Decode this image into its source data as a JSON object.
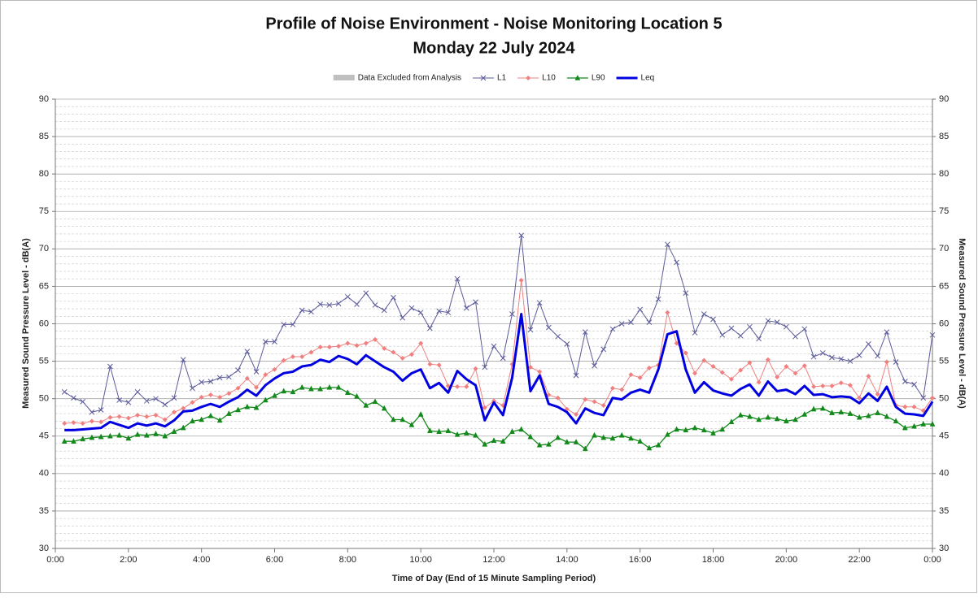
{
  "chart_data": {
    "type": "line",
    "title": "Profile of Noise Environment - Noise Monitoring Location 5",
    "subtitle": "Monday 22 July 2024",
    "x_label": "Time of Day (End of 15 Minute Sampling Period)",
    "y_label": "Measured Sound Pressure Level - dB(A)",
    "y2_label": "Measured Sound Pressure Level - dB(A)",
    "excluded_legend": {
      "name": "Data Excluded from Analysis",
      "color": "#bfbfbf"
    },
    "xlim": [
      0,
      24
    ],
    "xticks": [
      {
        "value": 0,
        "label": "0:00"
      },
      {
        "value": 2,
        "label": "2:00"
      },
      {
        "value": 4,
        "label": "4:00"
      },
      {
        "value": 6,
        "label": "6:00"
      },
      {
        "value": 8,
        "label": "8:00"
      },
      {
        "value": 10,
        "label": "10:00"
      },
      {
        "value": 12,
        "label": "12:00"
      },
      {
        "value": 14,
        "label": "14:00"
      },
      {
        "value": 16,
        "label": "16:00"
      },
      {
        "value": 18,
        "label": "18:00"
      },
      {
        "value": 20,
        "label": "20:00"
      },
      {
        "value": 22,
        "label": "22:00"
      },
      {
        "value": 24,
        "label": "0:00"
      }
    ],
    "ylim": [
      30,
      90
    ],
    "yticks": [
      30,
      35,
      40,
      45,
      50,
      55,
      60,
      65,
      70,
      75,
      80,
      85,
      90
    ],
    "y2lim": [
      30,
      90
    ],
    "y2ticks": [
      30,
      35,
      40,
      45,
      50,
      55,
      60,
      65,
      70,
      75,
      80,
      85,
      90
    ],
    "grid": true,
    "minor_grid": true,
    "legend": "top",
    "x": [
      0.25,
      0.5,
      0.75,
      1,
      1.25,
      1.5,
      1.75,
      2,
      2.25,
      2.5,
      2.75,
      3,
      3.25,
      3.5,
      3.75,
      4,
      4.25,
      4.5,
      4.75,
      5,
      5.25,
      5.5,
      5.75,
      6,
      6.25,
      6.5,
      6.75,
      7,
      7.25,
      7.5,
      7.75,
      8,
      8.25,
      8.5,
      8.75,
      9,
      9.25,
      9.5,
      9.75,
      10,
      10.25,
      10.5,
      10.75,
      11,
      11.25,
      11.5,
      11.75,
      12,
      12.25,
      12.5,
      12.75,
      13,
      13.25,
      13.5,
      13.75,
      14,
      14.25,
      14.5,
      14.75,
      15,
      15.25,
      15.5,
      15.75,
      16,
      16.25,
      16.5,
      16.75,
      17,
      17.25,
      17.5,
      17.75,
      18,
      18.25,
      18.5,
      18.75,
      19,
      19.25,
      19.5,
      19.75,
      20,
      20.25,
      20.5,
      20.75,
      21,
      21.25,
      21.5,
      21.75,
      22,
      22.25,
      22.5,
      22.75,
      23,
      23.25,
      23.5,
      23.75,
      24
    ],
    "series": [
      {
        "name": "L1",
        "color": "#5b5b9a",
        "marker": "x",
        "width": 1,
        "values": [
          50.9,
          50.1,
          49.6,
          48.2,
          48.5,
          54.3,
          49.8,
          49.5,
          50.9,
          49.7,
          50.0,
          49.2,
          50.1,
          55.2,
          51.4,
          52.2,
          52.3,
          52.8,
          52.9,
          53.8,
          56.3,
          53.6,
          57.6,
          57.6,
          59.9,
          59.9,
          61.8,
          61.6,
          62.6,
          62.5,
          62.7,
          63.6,
          62.6,
          64.1,
          62.5,
          61.8,
          63.5,
          60.8,
          62.1,
          61.5,
          59.4,
          61.7,
          61.5,
          66.0,
          62.1,
          62.9,
          54.2,
          57.0,
          55.4,
          61.3,
          71.8,
          59.2,
          62.8,
          59.5,
          58.3,
          57.3,
          53.1,
          58.9,
          54.4,
          56.6,
          59.3,
          60.0,
          60.2,
          61.9,
          60.2,
          63.3,
          70.6,
          68.2,
          64.1,
          58.8,
          61.3,
          60.6,
          58.5,
          59.4,
          58.4,
          59.6,
          58.0,
          60.4,
          60.2,
          59.6,
          58.3,
          59.3,
          55.6,
          56.1,
          55.5,
          55.3,
          55.0,
          55.8,
          57.3,
          55.7,
          58.9,
          54.9,
          52.3,
          51.9,
          50.1,
          58.5
        ]
      },
      {
        "name": "L10",
        "color": "#f08080",
        "marker": "diamond",
        "width": 1,
        "values": [
          46.7,
          46.8,
          46.7,
          47.0,
          46.9,
          47.5,
          47.6,
          47.4,
          47.8,
          47.6,
          47.8,
          47.2,
          48.2,
          48.7,
          49.5,
          50.2,
          50.5,
          50.2,
          50.7,
          51.4,
          52.7,
          51.5,
          53.2,
          53.9,
          55.1,
          55.6,
          55.6,
          56.2,
          56.9,
          56.9,
          57.0,
          57.4,
          57.1,
          57.4,
          57.9,
          56.7,
          56.2,
          55.4,
          55.9,
          57.4,
          54.6,
          54.5,
          51.7,
          51.6,
          51.6,
          54.0,
          48.8,
          49.7,
          49.1,
          54.6,
          65.8,
          54.2,
          53.6,
          50.5,
          50.1,
          48.6,
          47.9,
          49.9,
          49.6,
          49.1,
          51.4,
          51.2,
          53.2,
          52.8,
          54.1,
          54.5,
          61.5,
          57.4,
          56.1,
          53.4,
          55.1,
          54.3,
          53.5,
          52.6,
          53.8,
          54.8,
          52.2,
          55.2,
          52.9,
          54.3,
          53.4,
          54.4,
          51.6,
          51.7,
          51.7,
          52.1,
          51.8,
          50.1,
          53.0,
          50.6,
          54.9,
          49.1,
          48.9,
          48.9,
          48.4,
          50.1
        ]
      },
      {
        "name": "L90",
        "color": "#12891a",
        "marker": "triangle",
        "width": 1.3,
        "values": [
          44.3,
          44.3,
          44.6,
          44.8,
          44.9,
          45.0,
          45.1,
          44.7,
          45.2,
          45.1,
          45.3,
          45.0,
          45.6,
          46.1,
          47.0,
          47.2,
          47.7,
          47.1,
          48.0,
          48.5,
          48.9,
          48.8,
          49.8,
          50.4,
          51.0,
          50.9,
          51.5,
          51.3,
          51.3,
          51.5,
          51.5,
          50.8,
          50.3,
          49.1,
          49.6,
          48.7,
          47.2,
          47.2,
          46.5,
          47.9,
          45.7,
          45.6,
          45.7,
          45.2,
          45.4,
          45.1,
          43.9,
          44.4,
          44.3,
          45.6,
          45.9,
          44.9,
          43.8,
          43.9,
          44.8,
          44.2,
          44.2,
          43.3,
          45.1,
          44.8,
          44.7,
          45.1,
          44.7,
          44.3,
          43.4,
          43.8,
          45.2,
          45.9,
          45.8,
          46.1,
          45.8,
          45.4,
          45.9,
          46.9,
          47.8,
          47.6,
          47.2,
          47.5,
          47.3,
          47.0,
          47.2,
          47.9,
          48.6,
          48.7,
          48.1,
          48.2,
          48.0,
          47.5,
          47.7,
          48.1,
          47.6,
          47.0,
          46.1,
          46.3,
          46.6,
          46.6
        ]
      },
      {
        "name": "Leq",
        "color": "#0000e0",
        "marker": "none",
        "width": 3,
        "values": [
          45.8,
          45.8,
          45.9,
          46.0,
          46.1,
          46.9,
          46.5,
          46.1,
          46.7,
          46.4,
          46.7,
          46.3,
          47.1,
          48.3,
          48.4,
          48.9,
          49.3,
          48.9,
          49.6,
          50.2,
          51.2,
          50.4,
          51.8,
          52.7,
          53.4,
          53.6,
          54.3,
          54.5,
          55.2,
          54.9,
          55.7,
          55.3,
          54.6,
          55.8,
          55.0,
          54.2,
          53.6,
          52.4,
          53.4,
          53.9,
          51.4,
          52.1,
          50.8,
          53.7,
          52.6,
          51.8,
          47.1,
          49.5,
          47.8,
          52.8,
          61.3,
          51.0,
          53.1,
          49.3,
          48.9,
          48.2,
          46.7,
          48.7,
          48.1,
          47.8,
          50.1,
          49.9,
          50.8,
          51.2,
          50.8,
          53.9,
          58.6,
          59.0,
          53.9,
          50.8,
          52.2,
          51.1,
          50.7,
          50.4,
          51.3,
          51.9,
          50.4,
          52.3,
          51.0,
          51.2,
          50.6,
          51.7,
          50.5,
          50.6,
          50.2,
          50.3,
          50.2,
          49.4,
          50.7,
          49.7,
          51.6,
          48.9,
          48.0,
          47.9,
          47.7,
          49.6
        ]
      }
    ]
  }
}
